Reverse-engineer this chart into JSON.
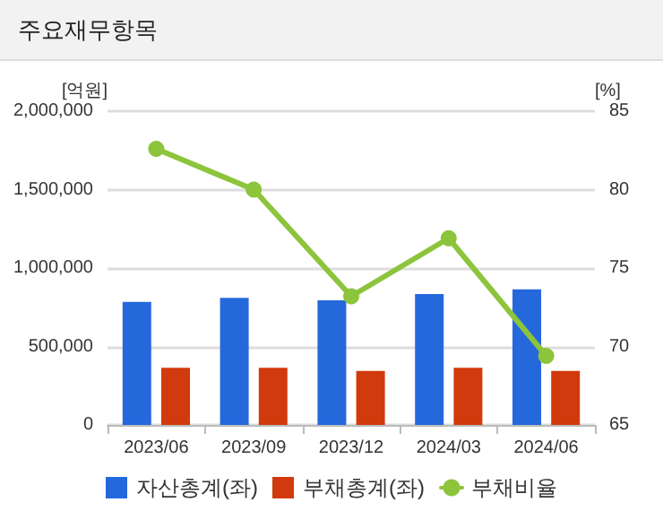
{
  "chart_data": {
    "type": "bar",
    "title": "주요재무항목",
    "ylabel": "[억원]",
    "y2label": "[%]",
    "categories": [
      "2023/06",
      "2023/09",
      "2023/12",
      "2024/03",
      "2024/06"
    ],
    "series": [
      {
        "name": "자산총계(좌)",
        "color": "#2468dc",
        "values": [
          785000,
          810000,
          795000,
          835000,
          865000
        ]
      },
      {
        "name": "부채총계(좌)",
        "color": "#d13a0c",
        "values": [
          365000,
          365000,
          345000,
          365000,
          345000
        ]
      },
      {
        "name": "부채비율",
        "type": "line",
        "axis": "y2",
        "color": "#8cc43c",
        "values": [
          82.6,
          80.0,
          73.2,
          76.9,
          69.4
        ]
      }
    ],
    "ylim": [
      0,
      2000000
    ],
    "yticks": [
      0,
      {
        "value": 500000,
        "label": "500,000"
      },
      {
        "value": 1000000,
        "label": "1,000,000"
      },
      {
        "value": 1500000,
        "label": "1,500,000"
      },
      {
        "value": 2000000,
        "label": "2,000,000"
      }
    ],
    "y2lim": [
      65,
      85
    ],
    "y2ticks": [
      65,
      70,
      75,
      80,
      85
    ],
    "grid": "y",
    "legend": "bottom",
    "marker": "circle",
    "line_style": "solid"
  }
}
